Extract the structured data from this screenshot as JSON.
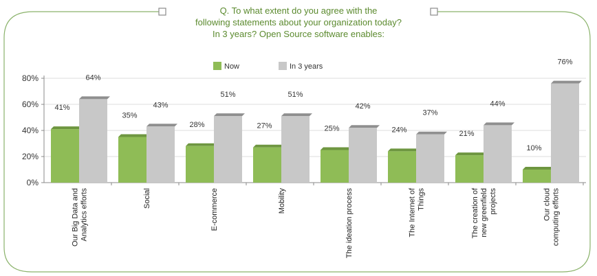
{
  "chart_data": {
    "type": "bar",
    "title_lines": [
      "Q. To what extent do you agree with the",
      "following statements about your organization today?",
      "In 3 years? Open Source software enables:"
    ],
    "categories": [
      "Our Big Data and Analytics efforts",
      "Social",
      "E-commerce",
      "Mobility",
      "The ideation process",
      "The Internet of Things",
      "The creation of new greenfield projects",
      "Our cloud computing efforts"
    ],
    "category_lines": [
      [
        "Our Big Data and",
        "Analytics efforts"
      ],
      [
        "Social"
      ],
      [
        "E-commerce"
      ],
      [
        "Mobility"
      ],
      [
        "The ideation process"
      ],
      [
        "The Internet of",
        "Things"
      ],
      [
        "The creation of",
        "new greenfield",
        "projects"
      ],
      [
        "Our cloud",
        "computing efforts"
      ]
    ],
    "series": [
      {
        "name": "Now",
        "color": "#8fbc56",
        "values": [
          41,
          35,
          28,
          27,
          25,
          24,
          21,
          10
        ]
      },
      {
        "name": "In 3 years",
        "color": "#c8c8c8",
        "values": [
          64,
          43,
          51,
          51,
          42,
          37,
          44,
          76
        ]
      }
    ],
    "data_labels": [
      [
        "41%",
        "35%",
        "28%",
        "27%",
        "25%",
        "24%",
        "21%",
        "10%"
      ],
      [
        "64%",
        "43%",
        "51%",
        "51%",
        "42%",
        "37%",
        "44%",
        "76%"
      ]
    ],
    "y_ticks": [
      "0%",
      "20%",
      "40%",
      "60%",
      "80%"
    ],
    "y_tick_values": [
      0,
      20,
      40,
      60,
      80
    ],
    "ylim": [
      0,
      80
    ],
    "legend_position": "top-center"
  }
}
